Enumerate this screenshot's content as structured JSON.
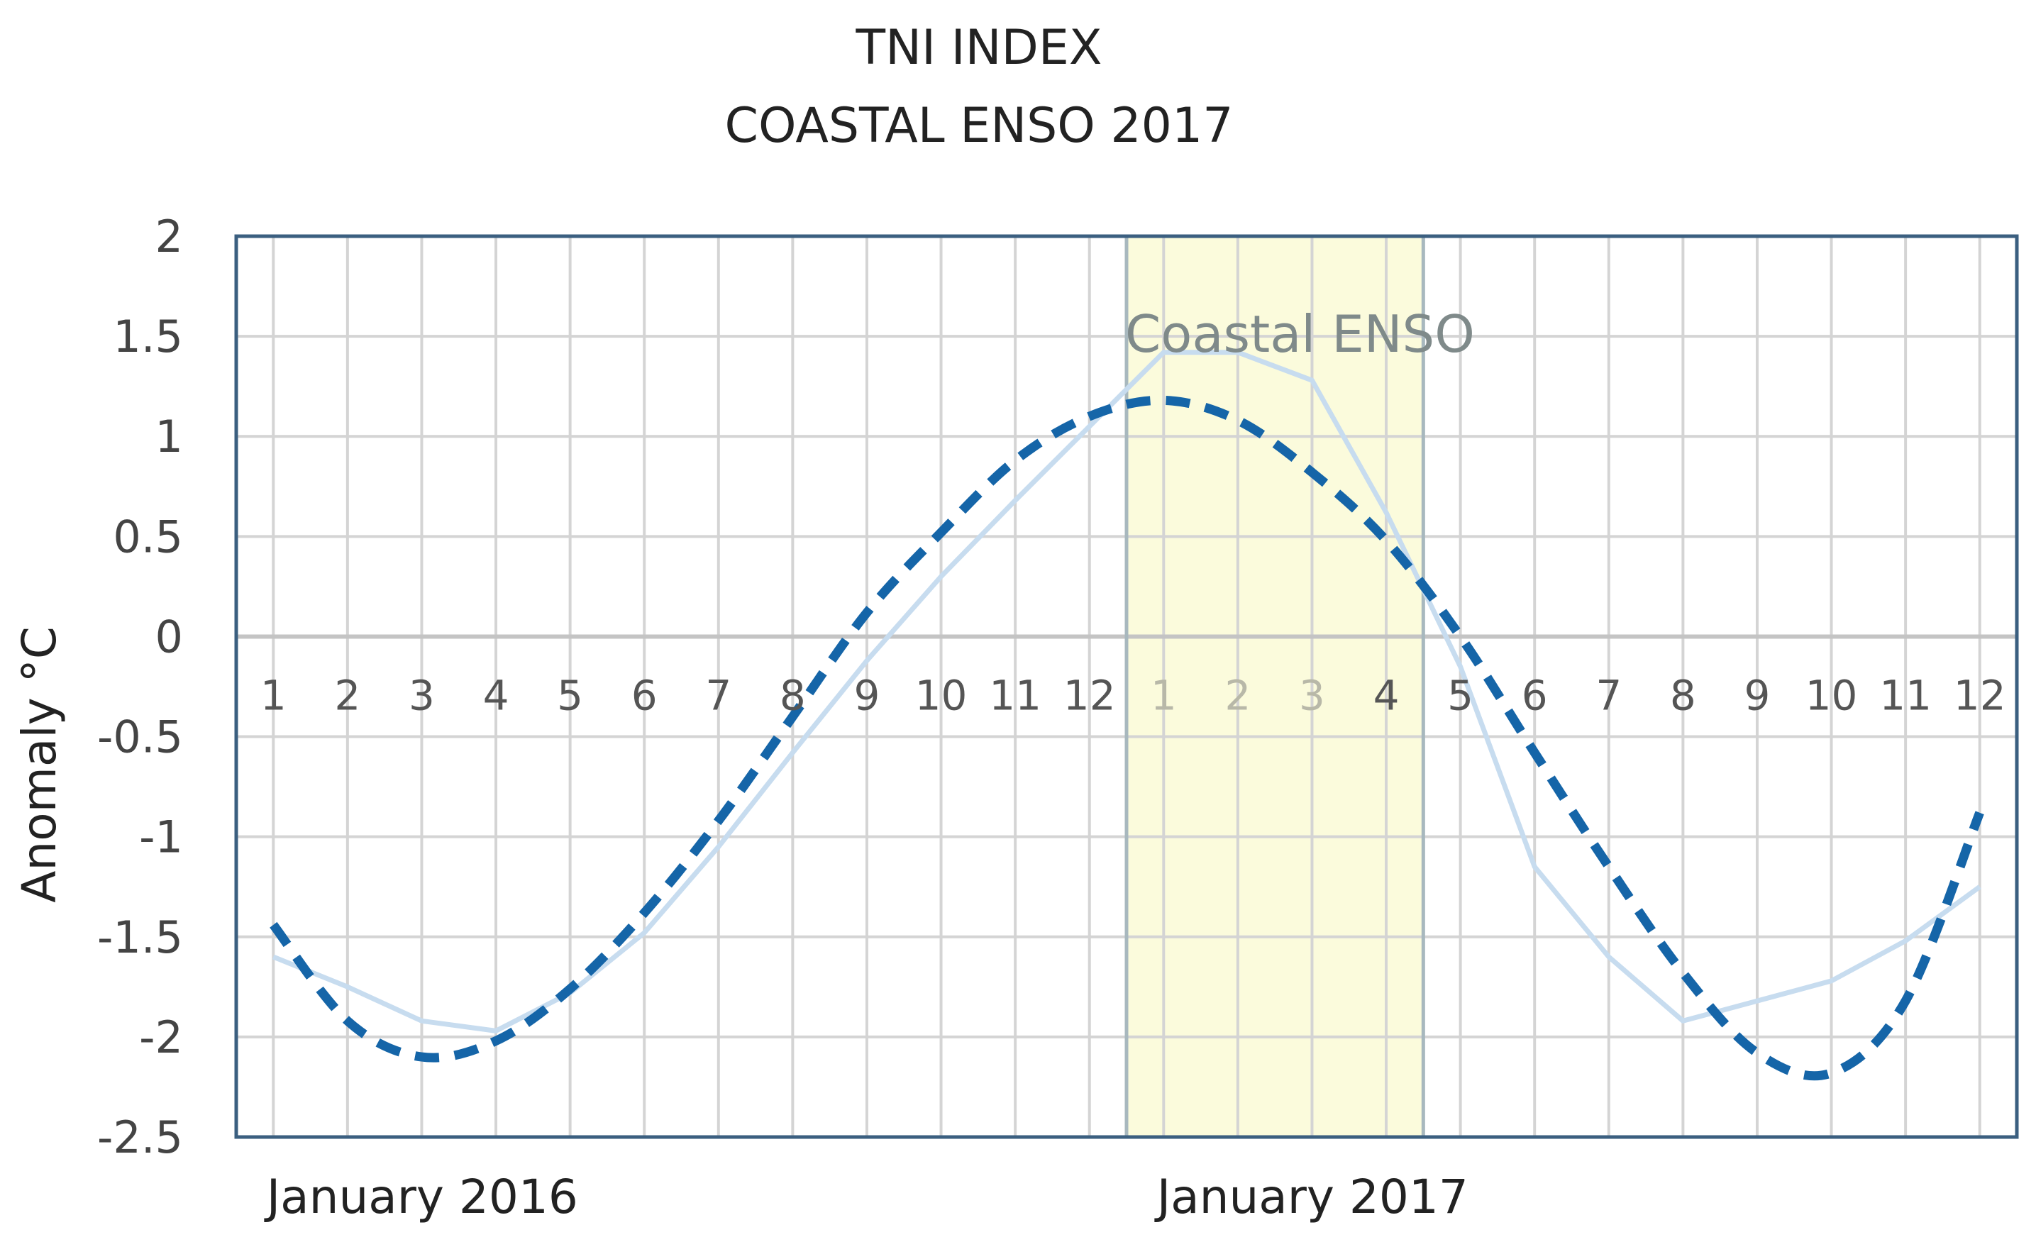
{
  "chart_data": {
    "type": "line",
    "title_lines": [
      "TNI INDEX",
      "COASTAL ENSO 2017"
    ],
    "xlabel": "",
    "ylabel": "Anomaly °C",
    "ylim": [
      -2.5,
      2
    ],
    "yticks": [
      2,
      1.5,
      1,
      0.5,
      0,
      -0.5,
      -1,
      -1.5,
      -2,
      -2.5
    ],
    "x_month_labels": [
      "1",
      "2",
      "3",
      "4",
      "5",
      "6",
      "7",
      "8",
      "9",
      "10",
      "11",
      "12",
      "1",
      "2",
      "3",
      "4",
      "5",
      "6",
      "7",
      "8",
      "9",
      "10",
      "11",
      "12"
    ],
    "x_year_labels": [
      {
        "text": "January 2016",
        "month_index": 1
      },
      {
        "text": "January 2017",
        "month_index": 13
      }
    ],
    "grid": true,
    "highlight": {
      "label": "Coastal ENSO",
      "from_index": 13,
      "to_index": 16,
      "color": "#fbfbdc"
    },
    "series": [
      {
        "style": "solid",
        "color": "#c7dcef",
        "values": [
          -1.6,
          -1.75,
          -1.92,
          -1.97,
          -1.78,
          -1.48,
          -1.05,
          -0.58,
          -0.12,
          0.3,
          0.68,
          1.05,
          1.42,
          1.42,
          1.28,
          0.62,
          -0.15,
          -1.15,
          -1.6,
          -1.92,
          -1.82,
          -1.72,
          -1.52,
          -1.25
        ]
      },
      {
        "style": "dashed",
        "color": "#1565a8",
        "values": [
          -1.44,
          -1.92,
          -2.1,
          -2.02,
          -1.76,
          -1.38,
          -0.92,
          -0.4,
          0.12,
          0.52,
          0.88,
          1.1,
          1.18,
          1.08,
          0.82,
          0.48,
          0.0,
          -0.58,
          -1.15,
          -1.68,
          -2.08,
          -2.18,
          -1.82,
          -0.88
        ]
      }
    ]
  }
}
